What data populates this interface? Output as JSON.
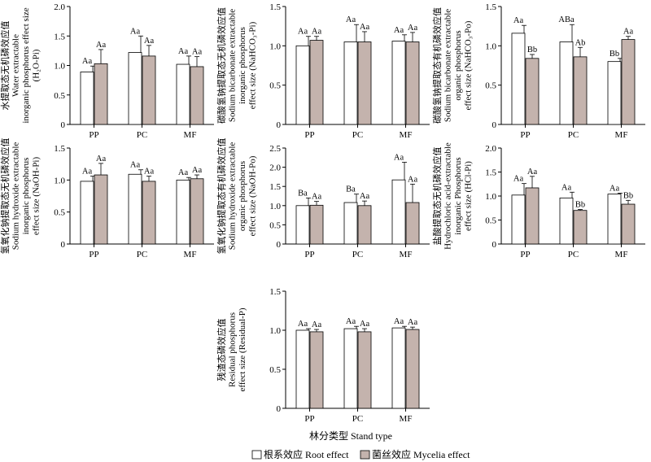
{
  "colors": {
    "root": "#ffffff",
    "mycelia": "#c4b3ad",
    "axis": "#000000"
  },
  "chart_data": [
    {
      "type": "bar",
      "ylabel": [
        "水提取态无机磷效应值",
        "Water extractable",
        "inorganic phosphorus effect size",
        "(H₂O-Pi)"
      ],
      "categories": [
        "PP",
        "PC",
        "MF"
      ],
      "ylim": [
        0,
        2.0
      ],
      "yticks": [
        "0",
        "0.5",
        "1.0",
        "1.5",
        "2.0"
      ],
      "series": [
        {
          "name": "根系效应 Root effect",
          "values": [
            0.89,
            1.22,
            1.02
          ],
          "errors": [
            0.1,
            0.28,
            0.14
          ],
          "labels": [
            "Aa",
            "Aa",
            "Aa"
          ]
        },
        {
          "name": "菌丝效应 Mycelia effect",
          "values": [
            1.03,
            1.16,
            0.98
          ],
          "errors": [
            0.24,
            0.18,
            0.17
          ],
          "labels": [
            "Aa",
            "Aa",
            "Aa"
          ]
        }
      ]
    },
    {
      "type": "bar",
      "ylabel": [
        "碳酸氢钠提取态无机磷效应值",
        "Sodium bicarbonate extractable",
        "inorganic phosphorus",
        "effect size (NaHCO₃-Pi)"
      ],
      "categories": [
        "PP",
        "PC",
        "MF"
      ],
      "ylim": [
        0,
        1.5
      ],
      "yticks": [
        "0",
        "0.5",
        "1.0",
        "1.5"
      ],
      "series": [
        {
          "name": "根系效应 Root effect",
          "values": [
            1.0,
            1.05,
            1.06
          ],
          "errors": [
            0.12,
            0.22,
            0.08
          ],
          "labels": [
            "Aa",
            "Aa",
            "Aa"
          ]
        },
        {
          "name": "菌丝效应 Mycelia effect",
          "values": [
            1.07,
            1.05,
            1.05
          ],
          "errors": [
            0.05,
            0.13,
            0.12
          ],
          "labels": [
            "Aa",
            "Aa",
            "Aa"
          ]
        }
      ]
    },
    {
      "type": "bar",
      "ylabel": [
        "碳酸氢钠提取态有机磷效应值",
        "Sodium bicarbonate extractable",
        "organic phosphorus",
        "effect size (NaHCO₃-Po)"
      ],
      "categories": [
        "PP",
        "PC",
        "MF"
      ],
      "ylim": [
        0,
        1.5
      ],
      "yticks": [
        "0",
        "0.5",
        "1.0",
        "1.5"
      ],
      "series": [
        {
          "name": "根系效应 Root effect",
          "values": [
            1.16,
            1.05,
            0.8
          ],
          "errors": [
            0.1,
            0.22,
            0.04
          ],
          "labels": [
            "Aa",
            "ABa",
            "Bb"
          ]
        },
        {
          "name": "菌丝效应 Mycelia effect",
          "values": [
            0.84,
            0.86,
            1.08
          ],
          "errors": [
            0.05,
            0.12,
            0.04
          ],
          "labels": [
            "Bb",
            "Ab",
            "Aa"
          ]
        }
      ]
    },
    {
      "type": "bar",
      "ylabel": [
        "氢氧化钠提取态无机磷效应值",
        "Sodium hydroxide extractable",
        "inorganic phosphorus",
        "effect size (NaOH-Pi)"
      ],
      "categories": [
        "PP",
        "PC",
        "MF"
      ],
      "ylim": [
        0,
        1.5
      ],
      "yticks": [
        "0",
        "0.5",
        "1.0",
        "1.5"
      ],
      "series": [
        {
          "name": "根系效应 Root effect",
          "values": [
            0.98,
            1.09,
            1.0
          ],
          "errors": [
            0.08,
            0.07,
            0.04
          ],
          "labels": [
            "Aa",
            "Aa",
            "Aa"
          ]
        },
        {
          "name": "菌丝效应 Mycelia effect",
          "values": [
            1.08,
            0.98,
            1.02
          ],
          "errors": [
            0.18,
            0.08,
            0.06
          ],
          "labels": [
            "Aa",
            "Aa",
            "Aa"
          ]
        }
      ]
    },
    {
      "type": "bar",
      "ylabel": [
        "氢氧化钠提取态有机磷效应值",
        "Sodium hydroxide extractable",
        "organic phosphorus",
        "effect size (NaOH-Po)"
      ],
      "categories": [
        "PP",
        "PC",
        "MF"
      ],
      "ylim": [
        0,
        2.5
      ],
      "yticks": [
        "0",
        "0.5",
        "1.0",
        "1.5",
        "2.0",
        "2.5"
      ],
      "series": [
        {
          "name": "根系效应 Root effect",
          "values": [
            1.0,
            1.08,
            1.67
          ],
          "errors": [
            0.2,
            0.22,
            0.46
          ],
          "labels": [
            "Ba",
            "Ba",
            "Aa"
          ]
        },
        {
          "name": "菌丝效应 Mycelia effect",
          "values": [
            1.01,
            1.0,
            1.08
          ],
          "errors": [
            0.1,
            0.12,
            0.48
          ],
          "labels": [
            "Aa",
            "Aa",
            "Aa"
          ]
        }
      ]
    },
    {
      "type": "bar",
      "ylabel": [
        "盐酸提取态无机磷效应值",
        "Hydrochloric acid-extractable",
        "inorganic Phosphorus",
        "effect size (HCl-Pi)"
      ],
      "categories": [
        "PP",
        "PC",
        "MF"
      ],
      "ylim": [
        0,
        2.0
      ],
      "yticks": [
        "0",
        "0.5",
        "1.0",
        "1.5",
        "2.0"
      ],
      "series": [
        {
          "name": "根系效应 Root effect",
          "values": [
            1.02,
            0.96,
            1.04
          ],
          "errors": [
            0.24,
            0.12,
            0.02
          ],
          "labels": [
            "Aa",
            "Aa",
            "Aa"
          ]
        },
        {
          "name": "菌丝效应 Mycelia effect",
          "values": [
            1.17,
            0.7,
            0.83
          ],
          "errors": [
            0.24,
            0.02,
            0.08
          ],
          "labels": [
            "Aa",
            "Bb",
            "Bb"
          ]
        }
      ]
    },
    {
      "type": "bar",
      "ylabel": [
        "残渣态磷效应值",
        "Residual phosphorus",
        "effect size (Residual-P)"
      ],
      "categories": [
        "PP",
        "PC",
        "MF"
      ],
      "ylim": [
        0,
        1.5
      ],
      "yticks": [
        "0",
        "0.5",
        "1.0",
        "1.5"
      ],
      "series": [
        {
          "name": "根系效应 Root effect",
          "values": [
            1.0,
            1.02,
            1.03
          ],
          "errors": [
            0.02,
            0.03,
            0.02
          ],
          "labels": [
            "Aa",
            "Aa",
            "Aa"
          ]
        },
        {
          "name": "菌丝效应 Mycelia effect",
          "values": [
            0.98,
            0.98,
            1.01
          ],
          "errors": [
            0.03,
            0.04,
            0.03
          ],
          "labels": [
            "Aa",
            "Aa",
            "Aa"
          ]
        }
      ]
    }
  ],
  "xlabel": "林分类型 Stand type",
  "legend": [
    {
      "label": "根系效应 Root effect",
      "color": "#ffffff"
    },
    {
      "label": "菌丝效应 Mycelia effect",
      "color": "#c4b3ad"
    }
  ]
}
